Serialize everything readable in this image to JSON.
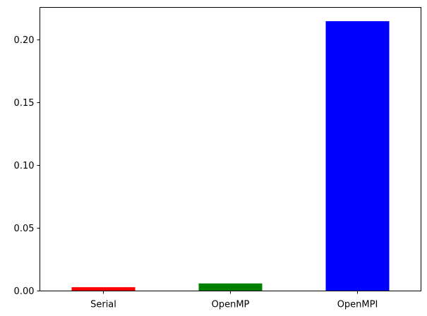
{
  "chart_data": {
    "type": "bar",
    "categories": [
      "Serial",
      "OpenMP",
      "OpenMPI"
    ],
    "values": [
      0.003,
      0.006,
      0.215
    ],
    "colors": [
      "#ff0000",
      "#008000",
      "#0000ff"
    ],
    "title": "",
    "xlabel": "",
    "ylabel": "",
    "ylim": [
      0,
      0.226
    ],
    "yticks": [
      0.0,
      0.05,
      0.1,
      0.15,
      0.2
    ],
    "ytick_labels": [
      "0.00",
      "0.05",
      "0.10",
      "0.15",
      "0.20"
    ],
    "grid": false,
    "legend": "none"
  }
}
